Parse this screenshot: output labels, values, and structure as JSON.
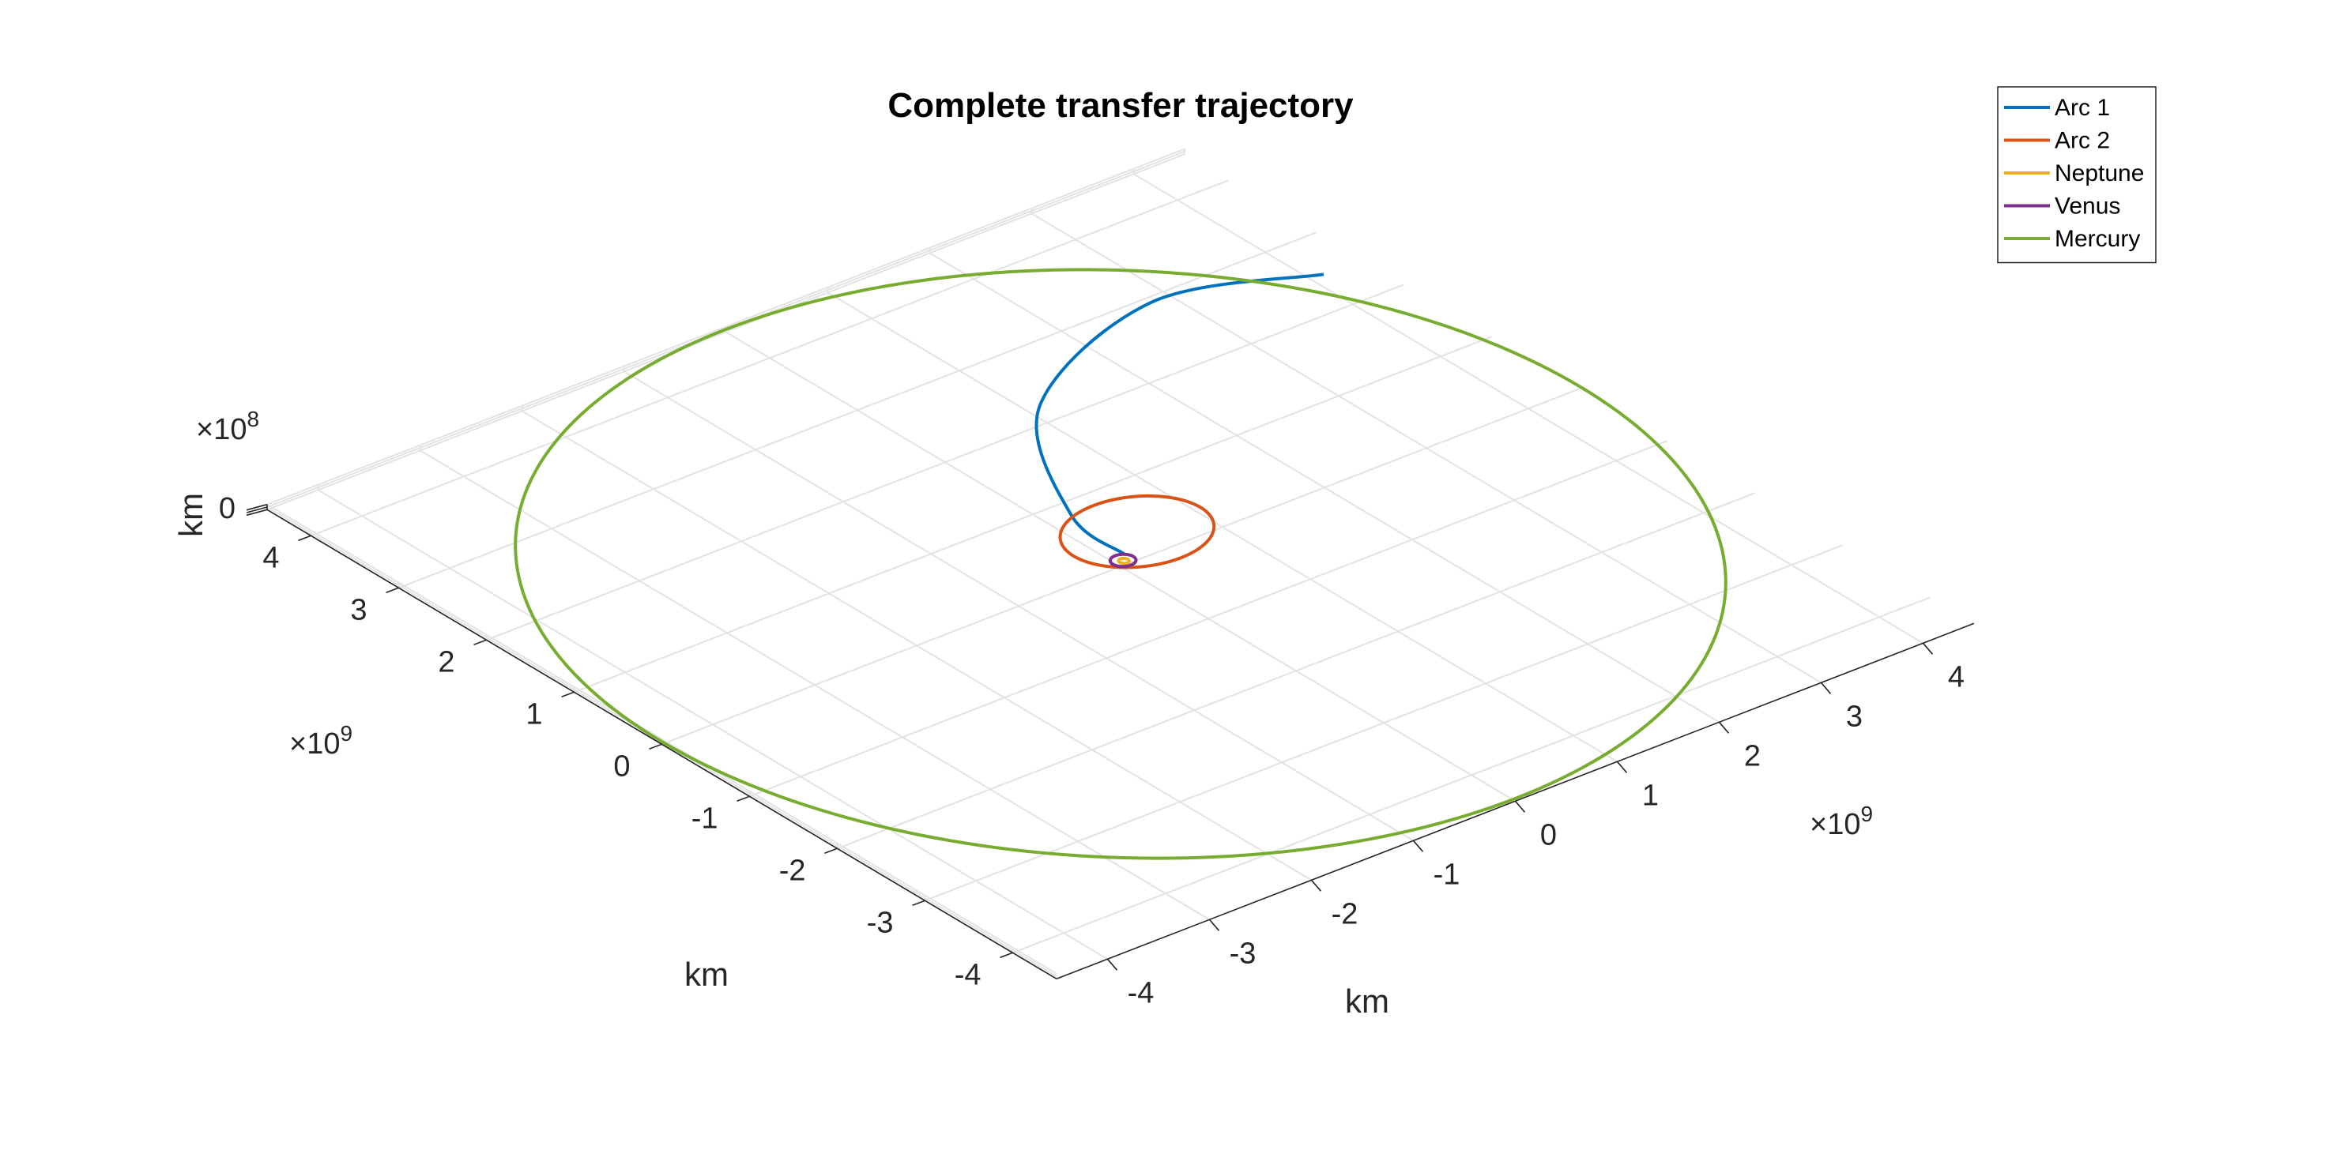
{
  "chart_data": {
    "type": "line",
    "projection": "3d",
    "title": "Complete transfer trajectory",
    "xlabel": "km",
    "ylabel": "km",
    "zlabel": "km",
    "x_exponent": "9",
    "y_exponent": "9",
    "z_exponent": "8",
    "xlim": [
      -4.5,
      4.5
    ],
    "ylim": [
      -4.5,
      4.5
    ],
    "zlim": [
      -0.3,
      0.3
    ],
    "xticks": [
      "-4",
      "-3",
      "-2",
      "-1",
      "0",
      "1",
      "2",
      "3",
      "4"
    ],
    "yticks": [
      "-4",
      "-3",
      "-2",
      "-1",
      "0",
      "1",
      "2",
      "3",
      "4"
    ],
    "zticks": [
      "0"
    ],
    "units_note": "x and y values in units of 1e9 km, z in units of 1e8 km",
    "grid": true,
    "legend_position": "top-right",
    "series": [
      {
        "name": "Arc 1",
        "color": "#0072BD",
        "x": [
          4.1,
          2.8,
          1.1,
          0.2,
          0.12
        ],
        "y": [
          2.45,
          2.9,
          2.2,
          0.8,
          0.1
        ]
      },
      {
        "name": "Arc 2",
        "color": "#D95319",
        "orbit": {
          "cx": 0.42,
          "cy": 0.3,
          "rx": 0.62,
          "ry": 0.5
        }
      },
      {
        "name": "Neptune",
        "color": "#EDB120",
        "orbit": {
          "cx": 0.05,
          "cy": 0.02,
          "rx": 0.04,
          "ry": 0.04
        }
      },
      {
        "name": "Venus",
        "color": "#7E2F8E",
        "orbit": {
          "cx": 0.05,
          "cy": 0.03,
          "rx": 0.1,
          "ry": 0.09
        }
      },
      {
        "name": "Mercury",
        "color": "#77AC30",
        "orbit": {
          "cx": 0.0,
          "cy": 0.0,
          "rx": 4.5,
          "ry": 4.5
        }
      }
    ]
  }
}
